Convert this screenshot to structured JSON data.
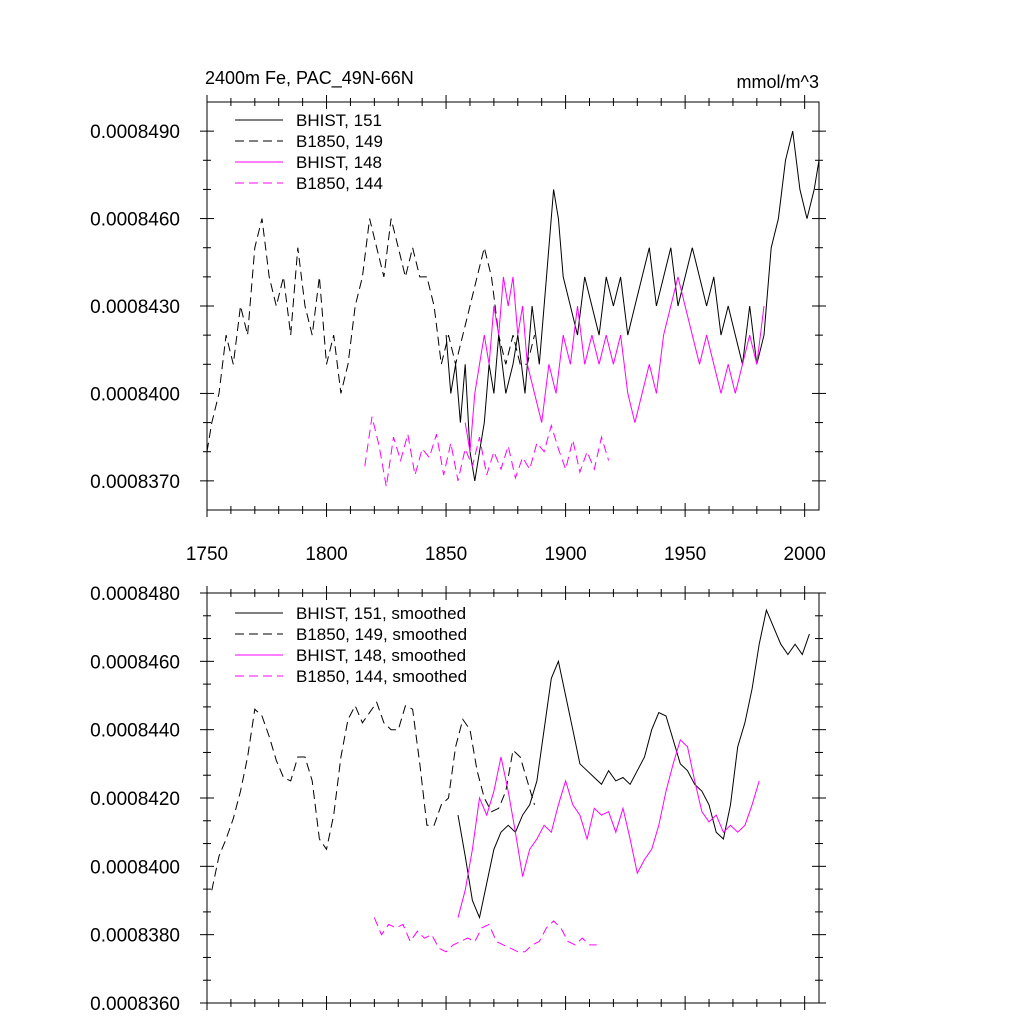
{
  "chart_data": [
    {
      "type": "line",
      "title": "2400m Fe, PAC_49N-66N",
      "units": "mmol/m^3",
      "xlim": [
        1750,
        2006
      ],
      "ylim": [
        0.000836,
        0.00085
      ],
      "x_ticks": [
        1750,
        1800,
        1850,
        1900,
        1950,
        2000
      ],
      "y_ticks": [
        0.000837,
        0.00084,
        0.000843,
        0.000846,
        0.000849
      ],
      "y_tick_labels": [
        "0.0008370",
        "0.0008400",
        "0.0008430",
        "0.0008460",
        "0.0008490"
      ],
      "legend": "top-left",
      "series": [
        {
          "name": "BHIST, 151",
          "color": "#000000",
          "dash": "solid",
          "x": [
            1850,
            1852,
            1854,
            1856,
            1858,
            1860,
            1862,
            1864,
            1866,
            1868,
            1870,
            1872,
            1875,
            1878,
            1880,
            1883,
            1886,
            1889,
            1892,
            1895,
            1897,
            1899,
            1902,
            1905,
            1908,
            1911,
            1914,
            1917,
            1920,
            1923,
            1926,
            1929,
            1932,
            1935,
            1938,
            1941,
            1944,
            1947,
            1950,
            1953,
            1956,
            1959,
            1962,
            1965,
            1968,
            1971,
            1974,
            1977,
            1980,
            1983,
            1986,
            1989,
            1992,
            1995,
            1998,
            2001,
            2004,
            2006
          ],
          "y": [
            0.000842,
            0.00084,
            0.000841,
            0.000839,
            0.000841,
            0.000838,
            0.000837,
            0.000838,
            0.000839,
            0.000841,
            0.00084,
            0.000842,
            0.00084,
            0.000841,
            0.000842,
            0.00084,
            0.000843,
            0.000841,
            0.000844,
            0.000847,
            0.000846,
            0.000844,
            0.000843,
            0.000842,
            0.000844,
            0.000843,
            0.000842,
            0.000844,
            0.000843,
            0.000844,
            0.000842,
            0.000843,
            0.000844,
            0.000845,
            0.000843,
            0.000844,
            0.000845,
            0.000843,
            0.000844,
            0.000845,
            0.000844,
            0.000843,
            0.000844,
            0.000842,
            0.000843,
            0.000842,
            0.000841,
            0.000843,
            0.000841,
            0.000842,
            0.000845,
            0.000846,
            0.000848,
            0.000849,
            0.000847,
            0.000846,
            0.000847,
            0.000848
          ]
        },
        {
          "name": "B1850, 149",
          "color": "#000000",
          "dash": "dashed",
          "x": [
            1750,
            1752,
            1755,
            1758,
            1761,
            1764,
            1767,
            1770,
            1773,
            1776,
            1779,
            1782,
            1785,
            1788,
            1791,
            1794,
            1797,
            1800,
            1803,
            1806,
            1809,
            1812,
            1815,
            1818,
            1821,
            1824,
            1827,
            1830,
            1833,
            1836,
            1839,
            1842,
            1845,
            1848,
            1851,
            1854,
            1857,
            1860,
            1863,
            1866,
            1869,
            1872,
            1875,
            1878,
            1881,
            1884,
            1887
          ],
          "y": [
            0.000838,
            0.000839,
            0.00084,
            0.000842,
            0.000841,
            0.000843,
            0.000842,
            0.000845,
            0.000846,
            0.000844,
            0.000843,
            0.000844,
            0.000842,
            0.000845,
            0.000843,
            0.000842,
            0.000844,
            0.000841,
            0.000842,
            0.00084,
            0.000841,
            0.000843,
            0.000844,
            0.000846,
            0.000845,
            0.000844,
            0.000846,
            0.000845,
            0.000844,
            0.000845,
            0.000844,
            0.000844,
            0.000843,
            0.000841,
            0.000842,
            0.000841,
            0.000842,
            0.000843,
            0.000844,
            0.000845,
            0.000844,
            0.000842,
            0.000841,
            0.000842,
            0.000841,
            0.000841,
            0.000842
          ]
        },
        {
          "name": "BHIST, 148",
          "color": "#ff00ff",
          "dash": "solid",
          "x": [
            1858,
            1860,
            1862,
            1864,
            1866,
            1868,
            1870,
            1872,
            1874,
            1876,
            1878,
            1880,
            1882,
            1884,
            1887,
            1890,
            1893,
            1896,
            1899,
            1902,
            1905,
            1908,
            1911,
            1914,
            1917,
            1920,
            1923,
            1926,
            1929,
            1932,
            1935,
            1938,
            1941,
            1944,
            1947,
            1950,
            1953,
            1956,
            1959,
            1962,
            1965,
            1968,
            1971,
            1974,
            1977,
            1980,
            1983
          ],
          "y": [
            0.000839,
            0.000838,
            0.00084,
            0.000841,
            0.000842,
            0.000841,
            0.000843,
            0.000842,
            0.000844,
            0.000843,
            0.000844,
            0.000842,
            0.000843,
            0.000841,
            0.00084,
            0.000839,
            0.000841,
            0.00084,
            0.000842,
            0.000841,
            0.000843,
            0.000841,
            0.000842,
            0.000841,
            0.000842,
            0.000841,
            0.000842,
            0.00084,
            0.000839,
            0.00084,
            0.000841,
            0.00084,
            0.000842,
            0.000843,
            0.000844,
            0.000843,
            0.000842,
            0.000841,
            0.000842,
            0.000841,
            0.00084,
            0.000841,
            0.00084,
            0.000841,
            0.000842,
            0.000841,
            0.000843
          ]
        },
        {
          "name": "B1850, 144",
          "color": "#ff00ff",
          "dash": "dashed",
          "x": [
            1816,
            1819,
            1822,
            1825,
            1828,
            1831,
            1834,
            1837,
            1840,
            1843,
            1846,
            1849,
            1852,
            1855,
            1858,
            1861,
            1864,
            1867,
            1870,
            1873,
            1876,
            1879,
            1882,
            1885,
            1888,
            1891,
            1894,
            1897,
            1900,
            1903,
            1906,
            1909,
            1912,
            1915,
            1918
          ],
          "y": [
            0.0008375,
            0.0008392,
            0.0008382,
            0.0008368,
            0.0008385,
            0.0008377,
            0.0008386,
            0.0008372,
            0.0008381,
            0.0008378,
            0.0008386,
            0.0008372,
            0.0008383,
            0.000837,
            0.0008381,
            0.0008375,
            0.0008385,
            0.0008372,
            0.000838,
            0.0008374,
            0.0008382,
            0.0008371,
            0.0008378,
            0.0008374,
            0.0008383,
            0.000838,
            0.0008389,
            0.0008381,
            0.0008374,
            0.0008384,
            0.0008373,
            0.000838,
            0.0008374,
            0.0008385,
            0.0008377
          ]
        }
      ]
    },
    {
      "type": "line",
      "xlim": [
        1750,
        2006
      ],
      "ylim": [
        0.000836,
        0.000848
      ],
      "y_ticks": [
        0.000836,
        0.000838,
        0.00084,
        0.000842,
        0.000844,
        0.000846,
        0.000848
      ],
      "y_tick_labels": [
        "0.0008360",
        "0.0008380",
        "0.0008400",
        "0.0008420",
        "0.0008440",
        "0.0008460",
        "0.0008480"
      ],
      "legend": "top-left",
      "series": [
        {
          "name": "BHIST, 151, smoothed",
          "color": "#000000",
          "dash": "solid",
          "x": [
            1855,
            1858,
            1861,
            1864,
            1867,
            1870,
            1873,
            1876,
            1879,
            1882,
            1885,
            1888,
            1891,
            1894,
            1897,
            1900,
            1903,
            1906,
            1909,
            1912,
            1915,
            1918,
            1921,
            1924,
            1927,
            1930,
            1933,
            1936,
            1939,
            1942,
            1945,
            1948,
            1951,
            1954,
            1957,
            1960,
            1963,
            1966,
            1969,
            1972,
            1975,
            1978,
            1981,
            1984,
            1987,
            1990,
            1993,
            1996,
            1999,
            2002
          ],
          "y": [
            0.0008415,
            0.0008403,
            0.000839,
            0.0008385,
            0.0008395,
            0.0008405,
            0.000841,
            0.0008412,
            0.000841,
            0.0008415,
            0.0008418,
            0.0008425,
            0.000844,
            0.0008455,
            0.000846,
            0.000845,
            0.000844,
            0.000843,
            0.0008428,
            0.0008426,
            0.0008424,
            0.0008428,
            0.0008425,
            0.0008426,
            0.0008424,
            0.0008428,
            0.0008432,
            0.000844,
            0.0008445,
            0.0008444,
            0.0008437,
            0.000843,
            0.0008428,
            0.0008424,
            0.0008422,
            0.0008418,
            0.000841,
            0.0008408,
            0.0008418,
            0.0008435,
            0.0008442,
            0.0008452,
            0.0008465,
            0.0008475,
            0.000847,
            0.0008465,
            0.0008462,
            0.0008465,
            0.0008462,
            0.0008468
          ]
        },
        {
          "name": "B1850, 149, smoothed",
          "color": "#000000",
          "dash": "dashed",
          "x": [
            1752,
            1755,
            1758,
            1761,
            1764,
            1767,
            1770,
            1773,
            1776,
            1779,
            1782,
            1785,
            1788,
            1791,
            1794,
            1797,
            1800,
            1803,
            1806,
            1809,
            1812,
            1815,
            1818,
            1821,
            1824,
            1827,
            1830,
            1833,
            1836,
            1839,
            1842,
            1845,
            1848,
            1851,
            1854,
            1857,
            1860,
            1863,
            1866,
            1869,
            1872,
            1875,
            1878,
            1881,
            1884,
            1887
          ],
          "y": [
            0.0008393,
            0.0008403,
            0.0008408,
            0.0008414,
            0.0008422,
            0.0008432,
            0.0008446,
            0.0008444,
            0.0008438,
            0.0008431,
            0.0008426,
            0.0008425,
            0.0008432,
            0.0008432,
            0.0008425,
            0.0008408,
            0.0008405,
            0.0008415,
            0.0008432,
            0.0008443,
            0.0008447,
            0.0008442,
            0.0008445,
            0.0008448,
            0.0008442,
            0.000844,
            0.000844,
            0.0008447,
            0.0008446,
            0.000843,
            0.0008412,
            0.0008412,
            0.0008418,
            0.000842,
            0.0008435,
            0.0008443,
            0.000844,
            0.0008428,
            0.000842,
            0.0008416,
            0.0008417,
            0.0008422,
            0.0008434,
            0.0008432,
            0.0008425,
            0.0008418
          ]
        },
        {
          "name": "BHIST, 148, smoothed",
          "color": "#ff00ff",
          "dash": "solid",
          "x": [
            1855,
            1858,
            1861,
            1864,
            1867,
            1870,
            1873,
            1876,
            1879,
            1882,
            1885,
            1888,
            1891,
            1894,
            1897,
            1900,
            1903,
            1906,
            1909,
            1912,
            1915,
            1918,
            1921,
            1924,
            1927,
            1930,
            1933,
            1936,
            1939,
            1942,
            1945,
            1948,
            1951,
            1954,
            1957,
            1960,
            1963,
            1966,
            1969,
            1972,
            1975,
            1978,
            1981
          ],
          "y": [
            0.0008385,
            0.0008393,
            0.0008405,
            0.000842,
            0.0008415,
            0.0008422,
            0.0008432,
            0.0008422,
            0.000841,
            0.0008397,
            0.0008405,
            0.0008408,
            0.0008412,
            0.000841,
            0.0008418,
            0.0008425,
            0.0008418,
            0.0008415,
            0.0008408,
            0.0008417,
            0.0008415,
            0.0008416,
            0.000841,
            0.0008417,
            0.0008408,
            0.0008398,
            0.0008402,
            0.0008405,
            0.0008412,
            0.0008422,
            0.000843,
            0.0008437,
            0.0008435,
            0.0008425,
            0.0008416,
            0.0008413,
            0.0008415,
            0.000841,
            0.0008412,
            0.000841,
            0.0008412,
            0.0008418,
            0.0008425
          ]
        },
        {
          "name": "B1850, 144, smoothed",
          "color": "#ff00ff",
          "dash": "dashed",
          "x": [
            1820,
            1823,
            1826,
            1829,
            1832,
            1835,
            1838,
            1841,
            1844,
            1847,
            1850,
            1853,
            1856,
            1859,
            1862,
            1865,
            1868,
            1871,
            1874,
            1877,
            1880,
            1883,
            1886,
            1889,
            1892,
            1895,
            1898,
            1901,
            1904,
            1907,
            1910,
            1913
          ],
          "y": [
            0.0008385,
            0.000838,
            0.0008383,
            0.0008382,
            0.0008383,
            0.0008378,
            0.0008381,
            0.0008379,
            0.000838,
            0.0008376,
            0.0008375,
            0.0008377,
            0.0008378,
            0.0008379,
            0.0008378,
            0.0008382,
            0.0008383,
            0.0008378,
            0.0008377,
            0.0008376,
            0.0008375,
            0.0008375,
            0.0008377,
            0.0008378,
            0.0008382,
            0.0008384,
            0.0008382,
            0.0008378,
            0.0008377,
            0.0008379,
            0.0008377,
            0.0008377
          ]
        }
      ]
    }
  ]
}
